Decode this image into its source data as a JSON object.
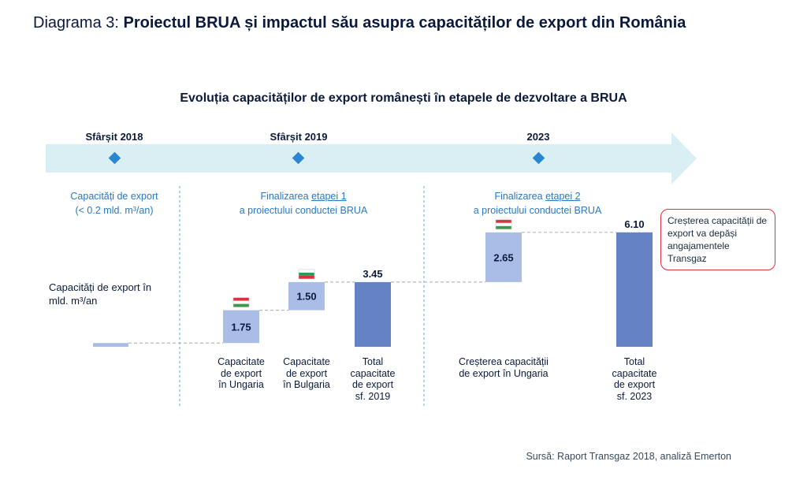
{
  "header": {
    "prefix": "Diagrama 3: ",
    "title": "Proiectul BRUA și impactul său asupra capacităților de export din România"
  },
  "chart_data": {
    "type": "bar",
    "title": "Evoluția capacităților de export românești în etapele de dezvoltare a BRUA",
    "ylabel": "Capacități de export în mld. m³/an",
    "timeline": [
      {
        "label": "Sfârșit 2018"
      },
      {
        "label": "Sfârșit 2019"
      },
      {
        "label": "2023"
      }
    ],
    "phases": [
      {
        "line1": "Capacități de export",
        "line2": "(< 0.2 mld. m³/an)"
      },
      {
        "line1_pre": "Finalizarea ",
        "line1_u": "etapei 1",
        "line2": "a proiectului conductei BRUA"
      },
      {
        "line1_pre": "Finalizarea ",
        "line1_u": "etapei 2",
        "line2": "a proiectului conductei BRUA"
      }
    ],
    "bars": [
      {
        "category": "Capacitate de export în Ungaria",
        "lines": [
          "Capacitate",
          "de export",
          "în Ungaria"
        ],
        "value": 1.75,
        "base": 0.2,
        "label": "1.75",
        "kind": "increment",
        "flag": "hungary-flag-icon"
      },
      {
        "category": "Capacitate de export în Bulgaria",
        "lines": [
          "Capacitate",
          "de export",
          "în Bulgaria"
        ],
        "value": 1.5,
        "base": 1.95,
        "label": "1.50",
        "kind": "increment",
        "flag": "bulgaria-flag-icon"
      },
      {
        "category": "Total capacitate de export sf. 2019",
        "lines": [
          "Total",
          "capacitate",
          "de export",
          "sf. 2019"
        ],
        "value": 3.45,
        "base": 0,
        "label": "3.45",
        "kind": "total"
      },
      {
        "category": "Creșterea capacității de export în Ungaria",
        "lines": [
          "Creșterea capacității",
          "de export în Ungaria"
        ],
        "value": 2.65,
        "base": 3.45,
        "label": "2.65",
        "kind": "increment",
        "flag": "hungary-flag-icon"
      },
      {
        "category": "Total capacitate de export sf. 2023",
        "lines": [
          "Total",
          "capacitate",
          "de export",
          "sf. 2023"
        ],
        "value": 6.1,
        "base": 0,
        "label": "6.10",
        "kind": "total"
      }
    ],
    "baseline_value": 0.2,
    "callout": "Creșterea capacității de export va depăși angajamentele Transgaz",
    "colors": {
      "increment": "#a9bde6",
      "total": "#6583c4",
      "timeline": "#d9eff4",
      "milestone": "#2a86d0",
      "callout_border": "#e03040"
    }
  },
  "footer": {
    "source": "Sursă: Raport Transgaz 2018, analiză Emerton"
  }
}
